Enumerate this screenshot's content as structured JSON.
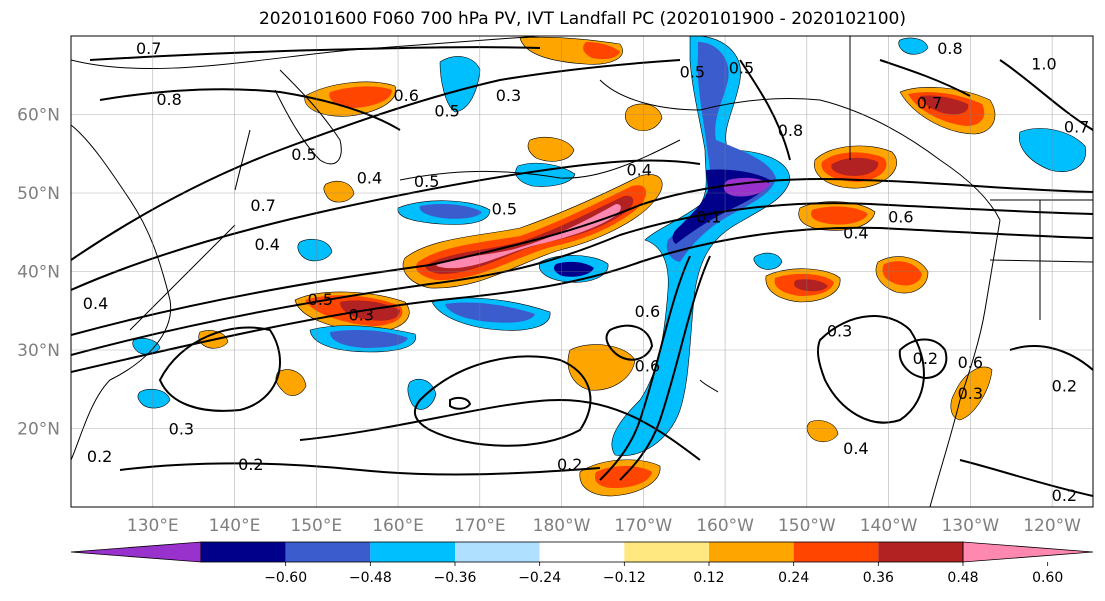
{
  "title": "2020101600 F060 700 hPa PV, IVT Landfall PC (2020101900 - 2020102100)",
  "map": {
    "lon_range": [
      120,
      245
    ],
    "lat_range": [
      10,
      70
    ],
    "lat_ticks": [
      {
        "lat": 20,
        "label": "20°N"
      },
      {
        "lat": 30,
        "label": "30°N"
      },
      {
        "lat": 40,
        "label": "40°N"
      },
      {
        "lat": 50,
        "label": "50°N"
      },
      {
        "lat": 60,
        "label": "60°N"
      }
    ],
    "lon_ticks": [
      {
        "lon": 130,
        "label": "130°E"
      },
      {
        "lon": 140,
        "label": "140°E"
      },
      {
        "lon": 150,
        "label": "150°E"
      },
      {
        "lon": 160,
        "label": "160°E"
      },
      {
        "lon": 170,
        "label": "170°E"
      },
      {
        "lon": 180,
        "label": "180°W"
      },
      {
        "lon": 190,
        "label": "170°W"
      },
      {
        "lon": 200,
        "label": "160°W"
      },
      {
        "lon": 210,
        "label": "150°W"
      },
      {
        "lon": 220,
        "label": "140°W"
      },
      {
        "lon": 230,
        "label": "130°W"
      },
      {
        "lon": 240,
        "label": "120°W"
      }
    ],
    "gridlines": true
  },
  "colorbar": {
    "extend": "both",
    "levels": [
      -0.72,
      -0.6,
      -0.48,
      -0.36,
      -0.24,
      -0.12,
      0.12,
      0.24,
      0.36,
      0.48,
      0.6,
      0.72
    ],
    "colors": [
      "#9932cc",
      "#00008b",
      "#3a5ccc",
      "#00bfff",
      "#b0e0ff",
      "#ffffff",
      "#ffe880",
      "#ffa500",
      "#ff4500",
      "#b22222",
      "#ff88b0"
    ],
    "tick_labels": [
      "−0.60",
      "−0.48",
      "−0.36",
      "−0.24",
      "−0.12",
      "0.12",
      "0.24",
      "0.36",
      "0.48",
      "0.60"
    ]
  },
  "contour_labels": [
    {
      "text": "0.7",
      "lon": 129.5,
      "lat": 68.5
    },
    {
      "text": "0.8",
      "lon": 132,
      "lat": 62
    },
    {
      "text": "0.6",
      "lon": 161,
      "lat": 62.5
    },
    {
      "text": "0.5",
      "lon": 166,
      "lat": 60.5
    },
    {
      "text": "0.3",
      "lon": 173.5,
      "lat": 62.5
    },
    {
      "text": "0.5",
      "lon": 148.5,
      "lat": 55
    },
    {
      "text": "0.4",
      "lon": 156.5,
      "lat": 52
    },
    {
      "text": "0.5",
      "lon": 163.5,
      "lat": 51.5
    },
    {
      "text": "0.7",
      "lon": 143.5,
      "lat": 48.5
    },
    {
      "text": "0.4",
      "lon": 144,
      "lat": 43.5
    },
    {
      "text": "0.5",
      "lon": 173,
      "lat": 48
    },
    {
      "text": "0.4",
      "lon": 189.5,
      "lat": 53
    },
    {
      "text": "0.5",
      "lon": 196,
      "lat": 65.5
    },
    {
      "text": "0.5",
      "lon": 202,
      "lat": 66
    },
    {
      "text": "0.8",
      "lon": 208,
      "lat": 58
    },
    {
      "text": "0.8",
      "lon": 227.5,
      "lat": 68.5
    },
    {
      "text": "1.0",
      "lon": 239,
      "lat": 66.5
    },
    {
      "text": "0.7",
      "lon": 225,
      "lat": 61.5
    },
    {
      "text": "0.7",
      "lon": 243,
      "lat": 58.5
    },
    {
      "text": "0.1",
      "lon": 198,
      "lat": 47
    },
    {
      "text": "0.6",
      "lon": 221.5,
      "lat": 47
    },
    {
      "text": "0.4",
      "lon": 216,
      "lat": 45
    },
    {
      "text": "0.4",
      "lon": 123,
      "lat": 36
    },
    {
      "text": "0.5",
      "lon": 150.5,
      "lat": 36.5
    },
    {
      "text": "0.3",
      "lon": 155.5,
      "lat": 34.5
    },
    {
      "text": "0.6",
      "lon": 190.5,
      "lat": 35
    },
    {
      "text": "0.3",
      "lon": 214,
      "lat": 32.5
    },
    {
      "text": "0.2",
      "lon": 224.5,
      "lat": 29
    },
    {
      "text": "0.6",
      "lon": 190.5,
      "lat": 28
    },
    {
      "text": "0.6",
      "lon": 230,
      "lat": 28.5
    },
    {
      "text": "0.3",
      "lon": 230,
      "lat": 24.5
    },
    {
      "text": "0.2",
      "lon": 241.5,
      "lat": 25.5
    },
    {
      "text": "0.3",
      "lon": 133.5,
      "lat": 20
    },
    {
      "text": "0.2",
      "lon": 123.5,
      "lat": 16.5
    },
    {
      "text": "0.2",
      "lon": 142,
      "lat": 15.5
    },
    {
      "text": "0.2",
      "lon": 181,
      "lat": 15.5
    },
    {
      "text": "0.4",
      "lon": 216,
      "lat": 17.5
    },
    {
      "text": "0.2",
      "lon": 241.5,
      "lat": 11.5
    }
  ]
}
